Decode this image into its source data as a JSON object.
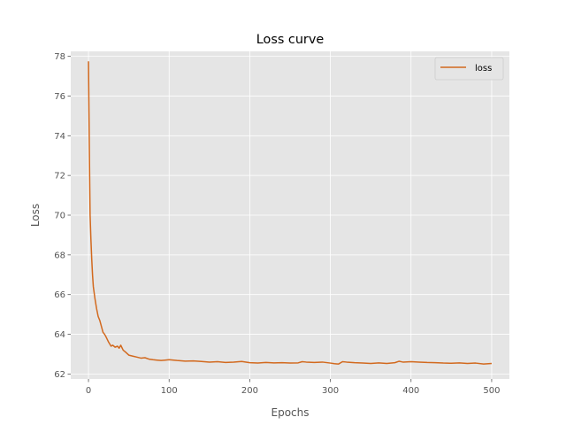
{
  "chart_data": {
    "type": "line",
    "title": "Loss curve",
    "xlabel": "Epochs",
    "ylabel": "Loss",
    "xlim": [
      -22,
      522
    ],
    "ylim": [
      61.75,
      78.25
    ],
    "xticks": [
      0,
      100,
      200,
      300,
      400,
      500
    ],
    "yticks": [
      62,
      64,
      66,
      68,
      70,
      72,
      74,
      76,
      78
    ],
    "grid": true,
    "legend_position": "top-right",
    "series": [
      {
        "name": "loss",
        "color": "#d2691e",
        "x": [
          0,
          1,
          2,
          3,
          4,
          5,
          6,
          7,
          8,
          10,
          12,
          14,
          16,
          18,
          20,
          22,
          25,
          28,
          30,
          33,
          36,
          38,
          40,
          43,
          46,
          50,
          55,
          60,
          65,
          70,
          75,
          80,
          85,
          90,
          95,
          100,
          110,
          120,
          130,
          140,
          150,
          160,
          170,
          180,
          190,
          200,
          210,
          220,
          230,
          240,
          250,
          260,
          265,
          270,
          280,
          290,
          300,
          305,
          310,
          315,
          320,
          330,
          340,
          350,
          360,
          370,
          380,
          385,
          390,
          400,
          410,
          420,
          430,
          440,
          450,
          460,
          470,
          480,
          490,
          500
        ],
        "y": [
          77.75,
          73.6,
          70.0,
          68.8,
          67.8,
          67.0,
          66.4,
          66.1,
          65.8,
          65.3,
          64.9,
          64.7,
          64.4,
          64.1,
          64.0,
          63.85,
          63.6,
          63.4,
          63.45,
          63.35,
          63.4,
          63.3,
          63.45,
          63.2,
          63.1,
          62.95,
          62.9,
          62.85,
          62.8,
          62.82,
          62.75,
          62.72,
          62.7,
          62.68,
          62.7,
          62.72,
          62.68,
          62.65,
          62.66,
          62.63,
          62.6,
          62.62,
          62.58,
          62.6,
          62.63,
          62.57,
          62.55,
          62.58,
          62.56,
          62.57,
          62.55,
          62.56,
          62.62,
          62.6,
          62.58,
          62.6,
          62.55,
          62.52,
          62.5,
          62.62,
          62.6,
          62.57,
          62.55,
          62.53,
          62.56,
          62.53,
          62.57,
          62.64,
          62.6,
          62.62,
          62.6,
          62.58,
          62.57,
          62.55,
          62.54,
          62.56,
          62.53,
          62.55,
          62.5,
          62.53
        ]
      }
    ]
  }
}
